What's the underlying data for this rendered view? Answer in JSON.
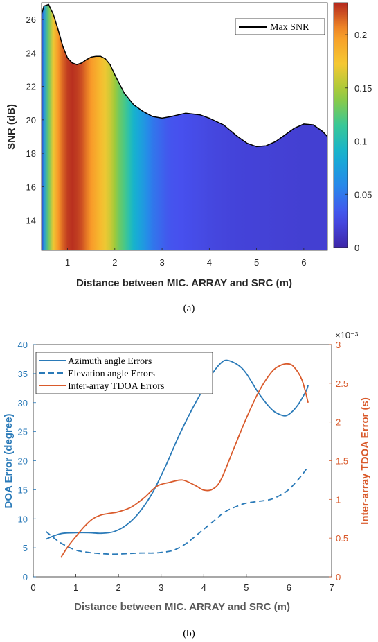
{
  "chart_data": [
    {
      "type": "area",
      "xlabel": "Distance between MIC. ARRAY and SRC (m)",
      "ylabel": "SNR (dB)",
      "xlim": [
        0.45,
        6.5
      ],
      "ylim": [
        12.2,
        27
      ],
      "xticks": [
        1,
        2,
        3,
        4,
        5,
        6
      ],
      "yticks": [
        14,
        16,
        18,
        20,
        22,
        24,
        26
      ],
      "legend_position": "top-right",
      "series": [
        {
          "name": "Max SNR",
          "color": "#000000",
          "x": [
            0.45,
            0.5,
            0.6,
            0.7,
            0.8,
            0.9,
            1.0,
            1.1,
            1.2,
            1.3,
            1.4,
            1.5,
            1.6,
            1.7,
            1.8,
            1.9,
            2.0,
            2.2,
            2.4,
            2.6,
            2.8,
            3.0,
            3.2,
            3.5,
            3.8,
            4.0,
            4.3,
            4.6,
            4.8,
            5.0,
            5.2,
            5.4,
            5.6,
            5.8,
            6.0,
            6.2,
            6.4,
            6.5
          ],
          "y": [
            26.3,
            26.8,
            26.9,
            26.3,
            25.4,
            24.4,
            23.7,
            23.4,
            23.3,
            23.4,
            23.6,
            23.75,
            23.8,
            23.8,
            23.65,
            23.3,
            22.7,
            21.6,
            20.9,
            20.5,
            20.2,
            20.1,
            20.2,
            20.4,
            20.3,
            20.1,
            19.7,
            19.0,
            18.6,
            18.4,
            18.45,
            18.7,
            19.1,
            19.5,
            19.75,
            19.7,
            19.3,
            19.0
          ]
        }
      ],
      "colorbar": {
        "ticks": [
          0,
          0.05,
          0.1,
          0.15,
          0.2
        ],
        "tick_labels": [
          "0",
          "0.05",
          "0.1",
          "0.15",
          "0.2"
        ],
        "range": [
          0,
          0.23
        ]
      },
      "colormap_columns": {
        "x": [
          0.45,
          0.5,
          0.6,
          0.7,
          0.8,
          0.9,
          1.0,
          1.1,
          1.2,
          1.3,
          1.4,
          1.5,
          1.6,
          1.7,
          1.8,
          1.9,
          2.0,
          2.1,
          2.2,
          2.3,
          2.4,
          2.5,
          2.6,
          2.7,
          2.8,
          2.9,
          3.0,
          3.1,
          3.2,
          3.4,
          3.6,
          3.8,
          4.0,
          4.3,
          4.6,
          5.0,
          5.5,
          6.0,
          6.5
        ],
        "value": [
          0.01,
          0.07,
          0.13,
          0.17,
          0.2,
          0.215,
          0.225,
          0.228,
          0.225,
          0.22,
          0.21,
          0.2,
          0.19,
          0.18,
          0.17,
          0.16,
          0.145,
          0.13,
          0.12,
          0.105,
          0.09,
          0.08,
          0.07,
          0.06,
          0.05,
          0.045,
          0.04,
          0.035,
          0.032,
          0.03,
          0.028,
          0.026,
          0.024,
          0.022,
          0.021,
          0.02,
          0.019,
          0.018,
          0.018
        ]
      },
      "caption": "(a)"
    },
    {
      "type": "line",
      "xlabel": "Distance between MIC. ARRAY and SRC (m)",
      "ylabel": "DOA Error (degree)",
      "ylabel_right": "Inter-array TDOA Error (s)",
      "right_exponent": "×10⁻³",
      "xlim": [
        0,
        7
      ],
      "ylim": [
        0,
        40
      ],
      "ylim_right": [
        0,
        3
      ],
      "xticks": [
        0,
        1,
        2,
        3,
        4,
        5,
        6,
        7
      ],
      "yticks": [
        0,
        5,
        10,
        15,
        20,
        25,
        30,
        35,
        40
      ],
      "yticks_right": [
        0,
        0.5,
        1,
        1.5,
        2,
        2.5,
        3
      ],
      "legend_position": "top-left",
      "series": [
        {
          "name": "Azimuth angle Errors",
          "axis": "left",
          "style": "solid",
          "color": "#2a7ab8",
          "x": [
            0.3,
            0.5,
            0.7,
            1.0,
            1.3,
            1.6,
            1.9,
            2.2,
            2.5,
            2.8,
            3.1,
            3.4,
            3.7,
            4.0,
            4.2,
            4.4,
            4.55,
            4.8,
            5.0,
            5.3,
            5.6,
            5.85,
            6.0,
            6.2,
            6.4,
            6.45
          ],
          "y": [
            6.5,
            7.1,
            7.5,
            7.6,
            7.6,
            7.5,
            7.8,
            9.0,
            11.2,
            14.5,
            19.0,
            24.0,
            28.5,
            32.5,
            35.0,
            36.8,
            37.3,
            36.5,
            35.0,
            31.5,
            28.8,
            27.8,
            28.0,
            29.5,
            32.0,
            33.0
          ]
        },
        {
          "name": "Elevation angle Errors",
          "axis": "left",
          "style": "dashed",
          "color": "#2a7ab8",
          "x": [
            0.3,
            0.5,
            0.7,
            1.0,
            1.3,
            1.6,
            1.9,
            2.2,
            2.5,
            2.8,
            3.0,
            3.3,
            3.6,
            3.9,
            4.2,
            4.5,
            4.8,
            5.0,
            5.3,
            5.6,
            5.9,
            6.1,
            6.3,
            6.45
          ],
          "y": [
            7.8,
            6.6,
            5.6,
            4.6,
            4.2,
            4.0,
            3.9,
            4.0,
            4.1,
            4.1,
            4.2,
            4.6,
            5.8,
            7.6,
            9.4,
            11.2,
            12.2,
            12.7,
            13.0,
            13.4,
            14.5,
            15.8,
            17.5,
            19.0
          ]
        },
        {
          "name": "Inter-array TDOA Errors",
          "axis": "right",
          "style": "solid",
          "color": "#d95a2b",
          "x": [
            0.65,
            0.8,
            1.0,
            1.2,
            1.4,
            1.6,
            1.8,
            2.0,
            2.3,
            2.6,
            2.9,
            3.2,
            3.5,
            3.8,
            4.0,
            4.2,
            4.4,
            4.7,
            5.0,
            5.3,
            5.6,
            5.8,
            5.95,
            6.1,
            6.3,
            6.45
          ],
          "y": [
            0.25,
            0.38,
            0.52,
            0.65,
            0.75,
            0.8,
            0.82,
            0.84,
            0.9,
            1.02,
            1.17,
            1.22,
            1.25,
            1.18,
            1.12,
            1.13,
            1.25,
            1.65,
            2.05,
            2.4,
            2.65,
            2.73,
            2.75,
            2.72,
            2.55,
            2.25
          ]
        }
      ],
      "caption": "(b)"
    }
  ]
}
